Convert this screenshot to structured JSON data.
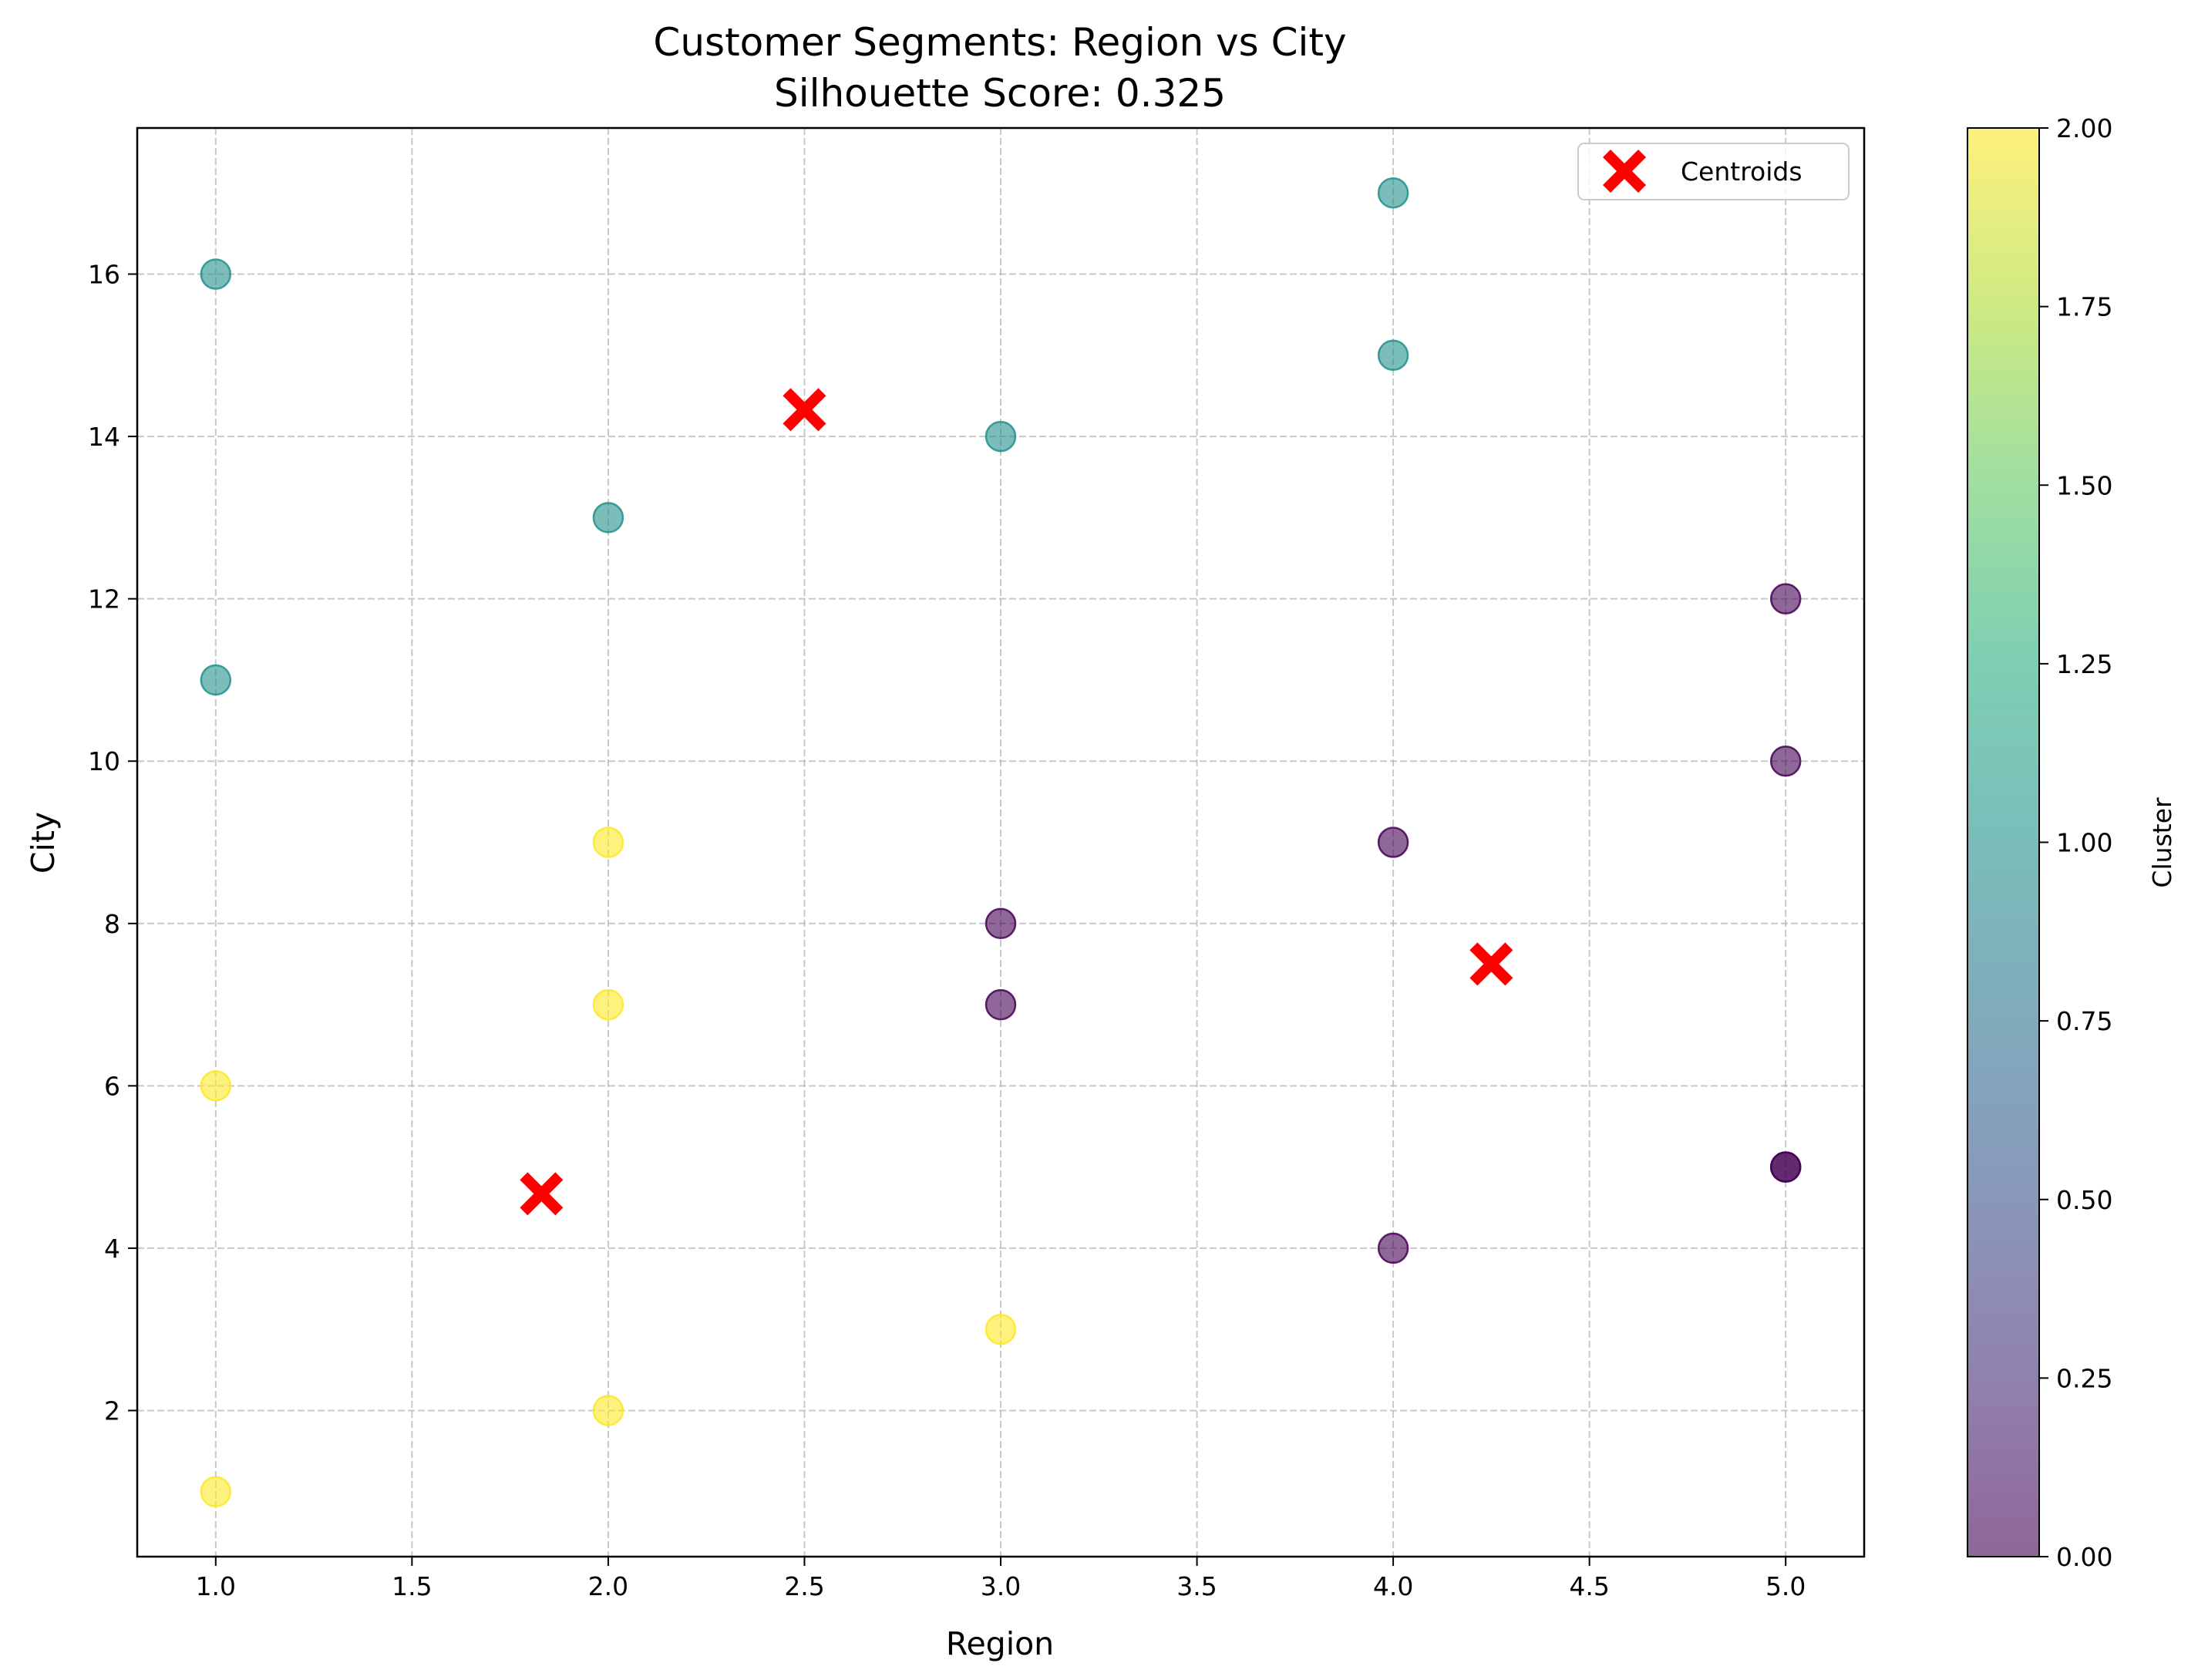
{
  "chart_data": {
    "type": "scatter",
    "title": "Customer Segments: Region vs City",
    "subtitle": "Silhouette Score: 0.325",
    "xlabel": "Region",
    "ylabel": "City",
    "xlim": [
      0.8,
      5.2
    ],
    "ylim": [
      0.2,
      17.8
    ],
    "xticks": [
      1.0,
      1.5,
      2.0,
      2.5,
      3.0,
      3.5,
      4.0,
      4.5,
      5.0
    ],
    "yticks": [
      2,
      4,
      6,
      8,
      10,
      12,
      14,
      16
    ],
    "grid": true,
    "legend_position": "top-right",
    "colormap": "viridis",
    "point_alpha": 0.6,
    "colorbar": {
      "label": "Cluster",
      "range": [
        0,
        2
      ],
      "ticks": [
        "0.00",
        "0.25",
        "0.50",
        "0.75",
        "1.00",
        "1.25",
        "1.50",
        "1.75",
        "2.00"
      ]
    },
    "points": [
      {
        "x": 1,
        "y": 16,
        "cluster": 1
      },
      {
        "x": 1,
        "y": 11,
        "cluster": 1
      },
      {
        "x": 2,
        "y": 13,
        "cluster": 1
      },
      {
        "x": 3,
        "y": 14,
        "cluster": 1
      },
      {
        "x": 4,
        "y": 17,
        "cluster": 1
      },
      {
        "x": 4,
        "y": 15,
        "cluster": 1
      },
      {
        "x": 5,
        "y": 12,
        "cluster": 0
      },
      {
        "x": 5,
        "y": 10,
        "cluster": 0
      },
      {
        "x": 4,
        "y": 9,
        "cluster": 0
      },
      {
        "x": 3,
        "y": 8,
        "cluster": 0
      },
      {
        "x": 3,
        "y": 7,
        "cluster": 0
      },
      {
        "x": 5,
        "y": 5,
        "cluster": 0
      },
      {
        "x": 5,
        "y": 5,
        "cluster": 0
      },
      {
        "x": 4,
        "y": 4,
        "cluster": 0
      },
      {
        "x": 2,
        "y": 9,
        "cluster": 2
      },
      {
        "x": 2,
        "y": 7,
        "cluster": 2
      },
      {
        "x": 1,
        "y": 6,
        "cluster": 2
      },
      {
        "x": 3,
        "y": 3,
        "cluster": 2
      },
      {
        "x": 2,
        "y": 2,
        "cluster": 2
      },
      {
        "x": 1,
        "y": 1,
        "cluster": 2
      }
    ],
    "centroids": {
      "name": "Centroids",
      "color": "#ff0000",
      "points": [
        {
          "x": 2.5,
          "y": 14.33
        },
        {
          "x": 4.25,
          "y": 7.5
        },
        {
          "x": 1.83,
          "y": 4.67
        }
      ]
    },
    "cluster_colors": [
      "#440154",
      "#21918c",
      "#fde725"
    ]
  }
}
